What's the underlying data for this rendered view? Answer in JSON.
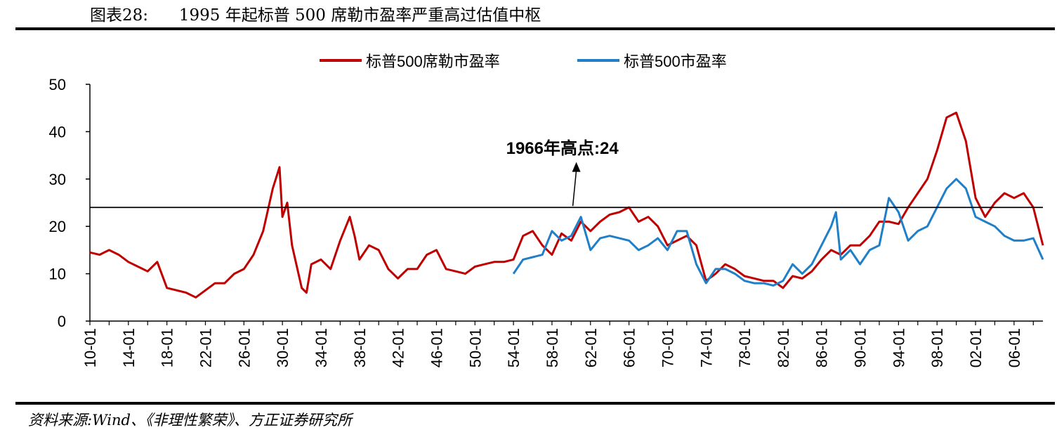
{
  "header": {
    "title": "图表28:      1995 年起标普 500 席勒市盈率严重高过估值中枢"
  },
  "footer": {
    "source": "资料来源:Wind、《非理性繁荣》、方正证券研究所"
  },
  "colors": {
    "shiller": "#c00000",
    "sp500": "#1f7fc8",
    "reference": "#000000"
  },
  "chart_data": {
    "type": "line",
    "title": "",
    "xlabel": "",
    "ylabel": "",
    "ylim": [
      0,
      50
    ],
    "y_ticks": [
      0,
      10,
      20,
      30,
      40,
      50
    ],
    "x_range": [
      1910,
      2009
    ],
    "x_tick_labels": [
      "10-01",
      "14-01",
      "18-01",
      "22-01",
      "26-01",
      "30-01",
      "34-01",
      "38-01",
      "42-01",
      "46-01",
      "50-01",
      "54-01",
      "58-01",
      "62-01",
      "66-01",
      "70-01",
      "74-01",
      "78-01",
      "82-01",
      "86-01",
      "90-01",
      "94-01",
      "98-01",
      "02-01",
      "06-01"
    ],
    "x_tick_years": [
      1910,
      1914,
      1918,
      1922,
      1926,
      1930,
      1934,
      1938,
      1942,
      1946,
      1950,
      1954,
      1958,
      1962,
      1966,
      1970,
      1974,
      1978,
      1982,
      1986,
      1990,
      1994,
      1998,
      2002,
      2006
    ],
    "legend": {
      "placement": "top"
    },
    "grid": false,
    "reference_line": {
      "value": 24,
      "label": "1966年高点:24",
      "annotation_year": 1966
    },
    "series": [
      {
        "name": "标普500席勒市盈率",
        "color_key": "shiller",
        "x": [
          1910,
          1911,
          1912,
          1913,
          1914,
          1915,
          1916,
          1917,
          1918,
          1919,
          1920,
          1921,
          1922,
          1923,
          1924,
          1925,
          1926,
          1927,
          1928,
          1929,
          1929.7,
          1930,
          1930.5,
          1931,
          1932,
          1932.5,
          1933,
          1934,
          1935,
          1936,
          1937,
          1937.5,
          1938,
          1939,
          1940,
          1941,
          1942,
          1943,
          1944,
          1945,
          1946,
          1947,
          1948,
          1949,
          1950,
          1951,
          1952,
          1953,
          1954,
          1955,
          1956,
          1957,
          1958,
          1959,
          1960,
          1961,
          1962,
          1963,
          1964,
          1965,
          1966,
          1967,
          1968,
          1969,
          1970,
          1971,
          1972,
          1973,
          1974,
          1975,
          1976,
          1977,
          1978,
          1979,
          1980,
          1981,
          1982,
          1983,
          1984,
          1985,
          1986,
          1987,
          1988,
          1989,
          1990,
          1991,
          1992,
          1993,
          1994,
          1995,
          1996,
          1997,
          1998,
          1999,
          2000,
          2001,
          2002,
          2003,
          2004,
          2005,
          2006,
          2007,
          2008,
          2009
        ],
        "values": [
          14.5,
          14,
          15,
          14,
          12.5,
          11.5,
          10.5,
          12.5,
          7,
          6.5,
          6,
          5,
          6.5,
          8,
          8,
          10,
          11,
          14,
          19,
          28,
          32.5,
          22,
          25,
          16,
          7,
          6,
          12,
          13,
          11,
          17,
          22,
          18,
          13,
          16,
          15,
          11,
          9,
          11,
          11,
          14,
          15,
          11,
          10.5,
          10,
          11.5,
          12,
          12.5,
          12.5,
          13,
          18,
          19,
          16,
          14,
          18.5,
          17,
          21,
          19,
          21,
          22.5,
          23,
          24,
          21,
          22,
          20,
          16,
          17,
          18,
          16,
          8.5,
          10,
          12,
          11,
          9.5,
          9,
          8.5,
          8.5,
          7,
          9.5,
          9,
          10.5,
          13,
          15,
          14,
          16,
          16,
          18,
          21,
          21,
          20.5,
          24,
          27,
          30,
          36,
          43,
          44,
          38,
          26,
          22,
          25,
          27,
          26,
          27,
          24,
          16
        ]
      },
      {
        "name": "标普500市盈率",
        "color_key": "sp500",
        "x": [
          1954,
          1955,
          1956,
          1957,
          1958,
          1959,
          1960,
          1961,
          1962,
          1963,
          1964,
          1965,
          1966,
          1967,
          1968,
          1969,
          1970,
          1971,
          1972,
          1973,
          1974,
          1975,
          1976,
          1977,
          1978,
          1979,
          1980,
          1981,
          1982,
          1983,
          1984,
          1985,
          1986,
          1987,
          1987.5,
          1988,
          1989,
          1990,
          1991,
          1992,
          1993,
          1994,
          1995,
          1996,
          1997,
          1998,
          1999,
          2000,
          2001,
          2002,
          2003,
          2004,
          2005,
          2006,
          2007,
          2008,
          2009
        ],
        "values": [
          10,
          13,
          13.5,
          14,
          19,
          17,
          18,
          22,
          15,
          17.5,
          18,
          17.5,
          17,
          15,
          16,
          17.5,
          15,
          19,
          19,
          12,
          8,
          11,
          11,
          10,
          8.5,
          8,
          8,
          7.5,
          8.5,
          12,
          10,
          12,
          16,
          20,
          23,
          13,
          15,
          12,
          15,
          16,
          26,
          23,
          17,
          19,
          20,
          24,
          28,
          30,
          28,
          22,
          21,
          20,
          18,
          17,
          17,
          17.5,
          13
        ]
      }
    ]
  }
}
